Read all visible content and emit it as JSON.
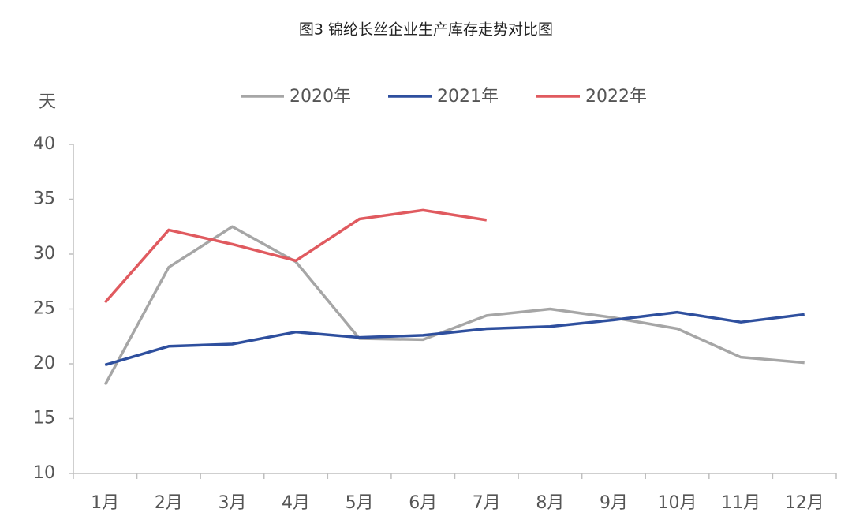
{
  "chart_data": {
    "type": "line",
    "title": "图3 锦纶长丝企业生产库存走势对比图",
    "y_label": "天",
    "categories": [
      "1月",
      "2月",
      "3月",
      "4月",
      "5月",
      "6月",
      "7月",
      "8月",
      "9月",
      "10月",
      "11月",
      "12月"
    ],
    "series": [
      {
        "name": "2020年",
        "color": "#a6a6a6",
        "values": [
          18.1,
          28.8,
          32.5,
          29.3,
          22.3,
          22.2,
          24.4,
          25.0,
          24.2,
          23.2,
          20.6,
          20.1
        ]
      },
      {
        "name": "2021年",
        "color": "#2e4f9e",
        "values": [
          19.9,
          21.6,
          21.8,
          22.9,
          22.4,
          22.6,
          23.2,
          23.4,
          24.0,
          24.7,
          23.8,
          24.5
        ]
      },
      {
        "name": "2022年",
        "color": "#e05a5f",
        "values": [
          25.6,
          32.2,
          30.9,
          29.4,
          33.2,
          34.0,
          33.1,
          null,
          null,
          null,
          null,
          null
        ]
      }
    ],
    "ylim": [
      10,
      40
    ],
    "yticks": [
      10,
      15,
      20,
      25,
      30,
      35,
      40
    ],
    "legend": "top"
  }
}
